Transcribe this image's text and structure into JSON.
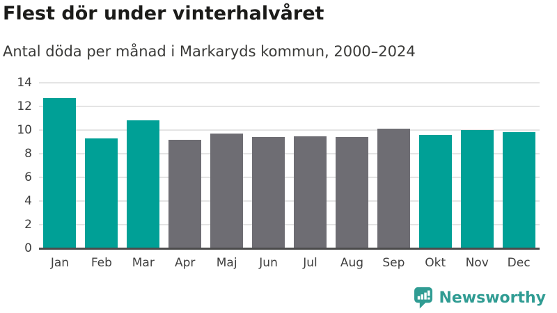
{
  "header": {
    "title": "Flest dör under vinterhalvåret",
    "subtitle": "Antal döda per månad i Markaryds kommun, 2000–2024"
  },
  "chart_data": {
    "type": "bar",
    "title": "Flest dör under vinterhalvåret",
    "subtitle": "Antal döda per månad i Markaryds kommun, 2000–2024",
    "categories": [
      "Jan",
      "Feb",
      "Mar",
      "Apr",
      "Maj",
      "Jun",
      "Jul",
      "Aug",
      "Sep",
      "Okt",
      "Nov",
      "Dec"
    ],
    "values": [
      12.7,
      9.3,
      10.8,
      9.2,
      9.7,
      9.4,
      9.5,
      9.4,
      10.1,
      9.6,
      10.0,
      9.8
    ],
    "highlighted_categories": [
      "Jan",
      "Feb",
      "Mar",
      "Okt",
      "Nov",
      "Dec"
    ],
    "bar_color_keys": [
      "highlight",
      "highlight",
      "highlight",
      "default",
      "default",
      "default",
      "default",
      "default",
      "default",
      "highlight",
      "highlight",
      "highlight"
    ],
    "xlabel": "",
    "ylabel": "",
    "ylim": [
      0,
      14
    ],
    "yticks": [
      0,
      2,
      4,
      6,
      8,
      10,
      12,
      14
    ],
    "grid": true,
    "legend_position": "none",
    "colors": {
      "highlight": "#00a096",
      "default": "#6e6d73",
      "gridline": "#e4e4e4",
      "baseline": "#4c4c4c",
      "tick_text": "#3f3f3f"
    }
  },
  "footer": {
    "brand": "Newsworthy",
    "brand_color": "#309c93"
  }
}
